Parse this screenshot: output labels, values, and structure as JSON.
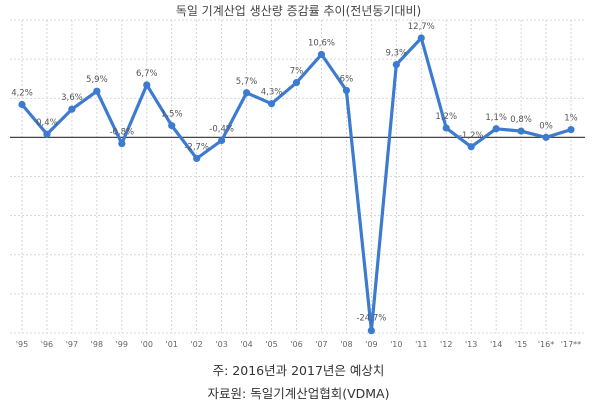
{
  "chart_data": {
    "type": "line",
    "title": "독일 기계산업 생산량 증감률 추이(전년동기대비)",
    "xlabel": "",
    "ylabel": "",
    "categories": [
      "'95",
      "'96",
      "'97",
      "'98",
      "'99",
      "'00",
      "'01",
      "'02",
      "'03",
      "'04",
      "'05",
      "'06",
      "'07",
      "'08",
      "'09",
      "'10",
      "'11",
      "'12",
      "'13",
      "'14",
      "'15",
      "'16*",
      "'17**"
    ],
    "values": [
      4.2,
      0.4,
      3.6,
      5.9,
      -0.8,
      6.7,
      1.5,
      -2.7,
      -0.4,
      5.7,
      4.3,
      7,
      10.6,
      6,
      -24.7,
      9.3,
      12.7,
      1.2,
      -1.2,
      1.1,
      0.8,
      0,
      1
    ],
    "value_labels": [
      "4,2%",
      "0,4%",
      "3,6%",
      "5,9%",
      "-0,8%",
      "6,7%",
      "1,5%",
      "-2,7%",
      "-0,4%",
      "5,7%",
      "4,3%",
      "7%",
      "10,6%",
      "6%",
      "-24,7%",
      "9,3%",
      "12,7%",
      "1,2%",
      "-1,2%",
      "1,1%",
      "0,8%",
      "0%",
      "1%"
    ],
    "ylim": [
      -25,
      15
    ],
    "grid": true,
    "legend": "none",
    "line_color": "#3d7bd1",
    "zero_line_color": "#444444",
    "grid_color": "#cccccc"
  },
  "notes": {
    "forecast_note": "주: 2016년과 2017년은 예상치",
    "source": "자료원: 독일기계산업협회(VDMA)"
  }
}
